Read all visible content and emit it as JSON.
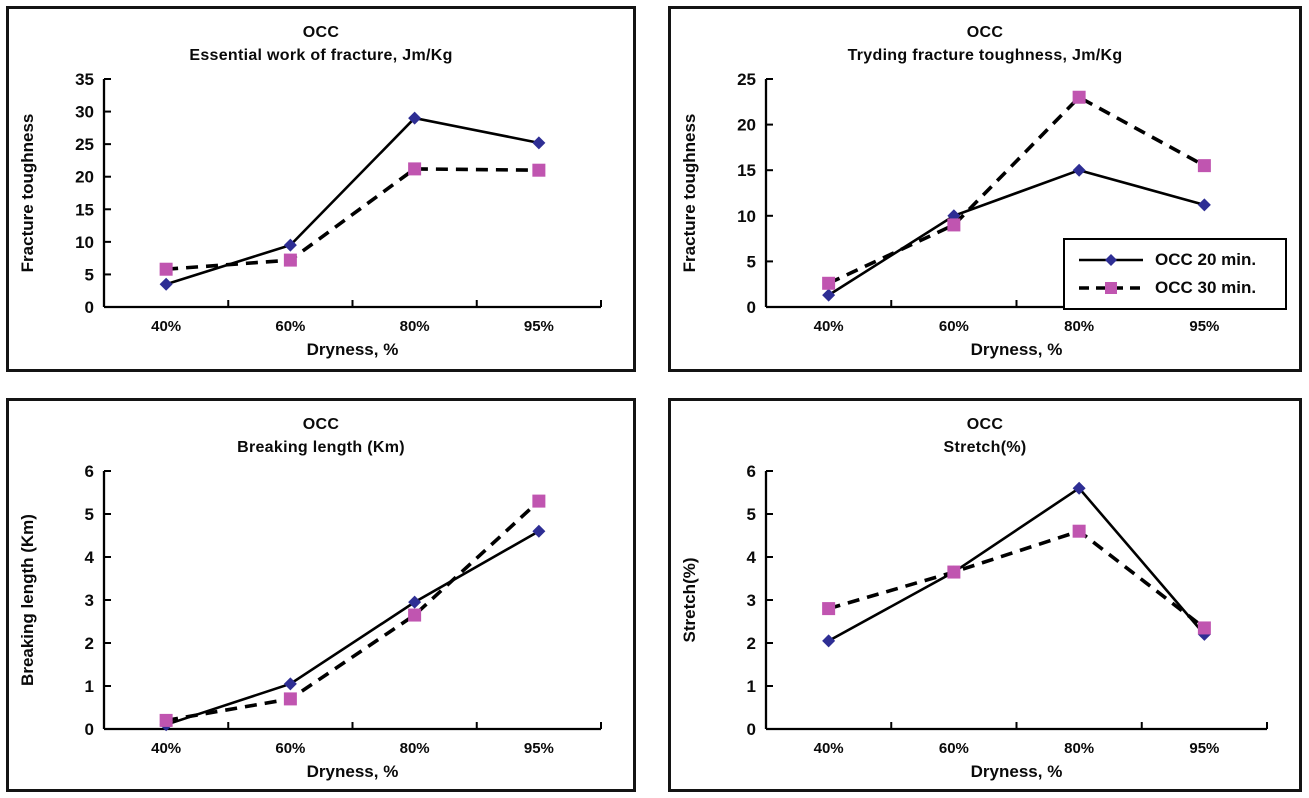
{
  "colors": {
    "axis": "#000000",
    "text": "#0a0a0a",
    "line": "#000000",
    "occ20_marker": "#2e2e94",
    "occ30_marker": "#c055b0",
    "panel_border": "#141414",
    "background": "#ffffff"
  },
  "chart_data": [
    {
      "type": "line",
      "title": "OCC",
      "subtitle": "Essential work of fracture, Jm/Kg",
      "xlabel": "Dryness, %",
      "ylabel": "Fracture toughness",
      "ylim": [
        0,
        35
      ],
      "ystep": 5,
      "grid": false,
      "legend_position": "none",
      "categories": [
        "40%",
        "60%",
        "80%",
        "95%"
      ],
      "series": [
        {
          "name": "OCC 20 min.",
          "marker": "diamond",
          "line": "solid",
          "values": [
            3.5,
            9.5,
            29,
            25.2
          ]
        },
        {
          "name": "OCC 30 min.",
          "marker": "square",
          "line": "dashed",
          "values": [
            5.8,
            7.2,
            21.2,
            21
          ]
        }
      ]
    },
    {
      "type": "line",
      "title": "OCC",
      "subtitle": "Tryding fracture toughness, Jm/Kg",
      "xlabel": "Dryness, %",
      "ylabel": "Fracture toughness",
      "ylim": [
        0,
        25
      ],
      "ystep": 5,
      "grid": false,
      "legend_position": "inside-bottom-right",
      "categories": [
        "40%",
        "60%",
        "80%",
        "95%"
      ],
      "series": [
        {
          "name": "OCC 20 min.",
          "marker": "diamond",
          "line": "solid",
          "values": [
            1.3,
            10,
            15,
            11.2
          ]
        },
        {
          "name": "OCC 30 min.",
          "marker": "square",
          "line": "dashed",
          "values": [
            2.6,
            9,
            23,
            15.5
          ]
        }
      ]
    },
    {
      "type": "line",
      "title": "OCC",
      "subtitle": "Breaking length (Km)",
      "xlabel": "Dryness, %",
      "ylabel": "Breaking length (Km)",
      "ylim": [
        0,
        6
      ],
      "ystep": 1,
      "grid": false,
      "legend_position": "none",
      "categories": [
        "40%",
        "60%",
        "80%",
        "95%"
      ],
      "series": [
        {
          "name": "OCC 20 min.",
          "marker": "diamond",
          "line": "solid",
          "values": [
            0.1,
            1.05,
            2.95,
            4.6
          ]
        },
        {
          "name": "OCC 30 min.",
          "marker": "square",
          "line": "dashed",
          "values": [
            0.2,
            0.7,
            2.65,
            5.3
          ]
        }
      ]
    },
    {
      "type": "line",
      "title": "OCC",
      "subtitle": "Stretch(%)",
      "xlabel": "Dryness, %",
      "ylabel": "Stretch(%)",
      "ylim": [
        0,
        6
      ],
      "ystep": 1,
      "grid": false,
      "legend_position": "none",
      "categories": [
        "40%",
        "60%",
        "80%",
        "95%"
      ],
      "series": [
        {
          "name": "OCC 20 min.",
          "marker": "diamond",
          "line": "solid",
          "values": [
            2.05,
            3.65,
            5.6,
            2.2
          ]
        },
        {
          "name": "OCC 30 min.",
          "marker": "square",
          "line": "dashed",
          "values": [
            2.8,
            3.65,
            4.6,
            2.35
          ]
        }
      ]
    }
  ]
}
